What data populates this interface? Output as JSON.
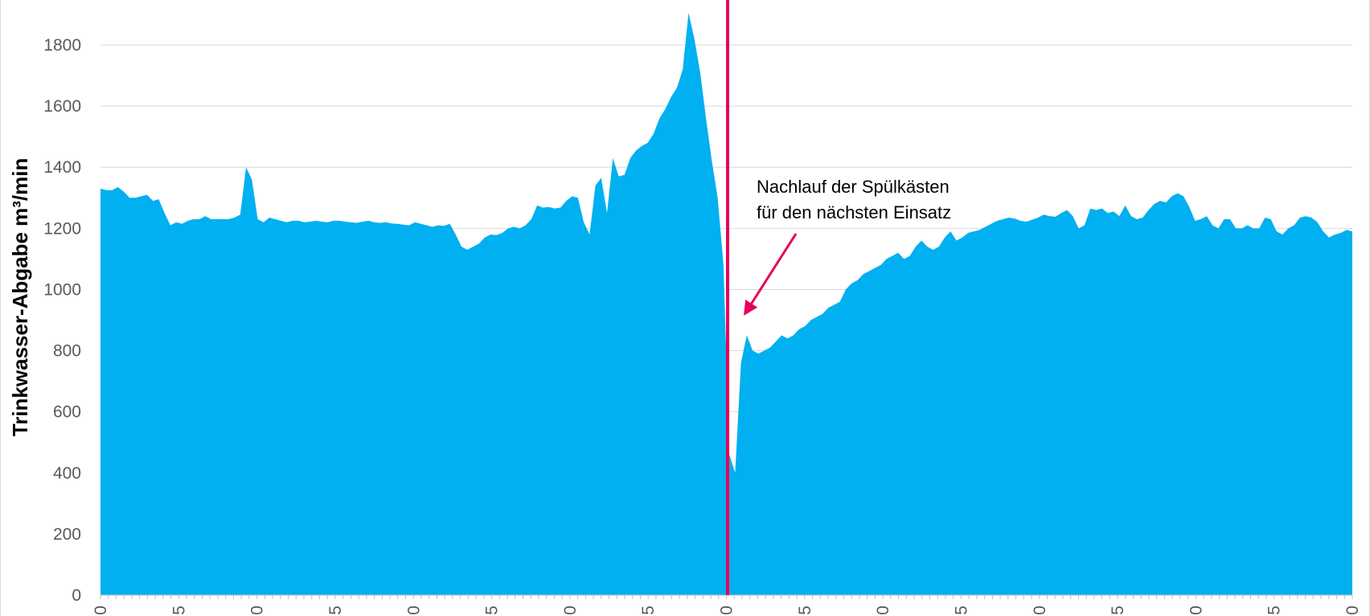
{
  "chart_data": {
    "type": "area",
    "title": "",
    "xlabel": "",
    "ylabel": "Trinkwasser-Abgabe  m³/min",
    "ylim": [
      0,
      1900
    ],
    "yticks": [
      0,
      200,
      400,
      600,
      800,
      1000,
      1200,
      1400,
      1600,
      1800
    ],
    "grid": true,
    "legend": "none",
    "colors": {
      "area": "#00b0f0",
      "marker": "#e6005c",
      "gridline": "#d9d9d9",
      "axis": "#bfbfbf"
    },
    "x_tick_labels": [
      "0",
      "5",
      "0",
      "5",
      "0",
      "5",
      "0",
      "5",
      "0",
      "5",
      "0",
      "5",
      "0",
      "5",
      "0",
      "5",
      "0"
    ],
    "series": [
      {
        "values": [
          1330,
          1325,
          1325,
          1335,
          1320,
          1300,
          1300,
          1305,
          1310,
          1290,
          1295,
          1250,
          1210,
          1220,
          1215,
          1225,
          1230,
          1230,
          1240,
          1230,
          1230,
          1230,
          1230,
          1235,
          1245,
          1400,
          1360,
          1230,
          1220,
          1235,
          1230,
          1225,
          1220,
          1225,
          1225,
          1220,
          1222,
          1225,
          1222,
          1220,
          1225,
          1225,
          1222,
          1220,
          1218,
          1222,
          1225,
          1220,
          1218,
          1220,
          1216,
          1215,
          1212,
          1210,
          1220,
          1215,
          1210,
          1205,
          1210,
          1208,
          1215,
          1180,
          1140,
          1130,
          1140,
          1150,
          1170,
          1180,
          1178,
          1185,
          1200,
          1205,
          1200,
          1210,
          1230,
          1275,
          1268,
          1270,
          1265,
          1268,
          1290,
          1305,
          1300,
          1220,
          1180,
          1340,
          1365,
          1250,
          1430,
          1370,
          1375,
          1430,
          1455,
          1470,
          1480,
          1510,
          1560,
          1590,
          1630,
          1660,
          1720,
          1905,
          1820,
          1710,
          1560,
          1420,
          1300,
          1080,
          460,
          400,
          760,
          850,
          800,
          790,
          800,
          810,
          830,
          850,
          840,
          850,
          870,
          880,
          900,
          910,
          920,
          940,
          950,
          960,
          1000,
          1020,
          1030,
          1050,
          1060,
          1070,
          1080,
          1100,
          1110,
          1120,
          1100,
          1110,
          1140,
          1160,
          1140,
          1130,
          1140,
          1170,
          1190,
          1160,
          1170,
          1185,
          1190,
          1195,
          1205,
          1215,
          1225,
          1230,
          1235,
          1232,
          1225,
          1222,
          1228,
          1235,
          1245,
          1240,
          1238,
          1250,
          1260,
          1240,
          1200,
          1210,
          1265,
          1260,
          1265,
          1250,
          1255,
          1240,
          1275,
          1240,
          1230,
          1235,
          1260,
          1280,
          1290,
          1285,
          1305,
          1315,
          1305,
          1270,
          1225,
          1230,
          1240,
          1210,
          1200,
          1230,
          1230,
          1200,
          1200,
          1210,
          1200,
          1200,
          1235,
          1230,
          1190,
          1180,
          1200,
          1210,
          1235,
          1240,
          1235,
          1220,
          1190,
          1170,
          1180,
          1185,
          1195,
          1190
        ]
      }
    ],
    "annotations": [
      {
        "text_line1": "Nachlauf der Spülkästen",
        "text_line2": "für den nächsten Einsatz"
      }
    ]
  }
}
